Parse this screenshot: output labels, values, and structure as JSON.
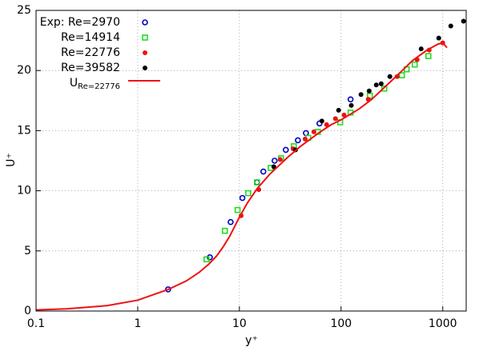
{
  "chart_data": {
    "type": "scatter",
    "x_label": "y⁺",
    "y_label": "U⁺",
    "log_x": true,
    "grid": true,
    "legend": "upper left",
    "xlim": [
      0.1,
      1700
    ],
    "xticks": [
      0.1,
      1,
      10,
      100,
      1000
    ],
    "ylim": [
      0,
      25
    ],
    "yticks": [
      0,
      5,
      10,
      15,
      20,
      25
    ],
    "series": [
      {
        "name": "Exp: Re=2970",
        "marker": "circle-open",
        "color": "#0000cc",
        "x": [
          1.99,
          5.12,
          8.2,
          10.7,
          14.9,
          17.2,
          22.2,
          28.6,
          37.6,
          45.1,
          61.3,
          124
        ],
        "values": [
          1.8,
          4.47,
          7.4,
          9.4,
          10.7,
          11.6,
          12.5,
          13.4,
          14.2,
          14.8,
          15.6,
          17.6
        ]
      },
      {
        "name": "Re=14914",
        "marker": "square-open",
        "color": "#22dd22",
        "x": [
          4.75,
          7.2,
          9.6,
          12.2,
          14.9,
          20.3,
          25.7,
          34.3,
          47.5,
          59.1,
          98,
          124,
          192,
          266,
          396,
          442,
          530,
          722
        ],
        "values": [
          4.3,
          6.67,
          8.4,
          9.8,
          10.7,
          11.9,
          12.7,
          13.7,
          14.4,
          14.9,
          15.7,
          16.5,
          17.9,
          18.5,
          19.6,
          20.1,
          20.5,
          21.2
        ]
      },
      {
        "name": "Re=22776",
        "marker": "dot",
        "color": "#ee1111",
        "x": [
          10.4,
          15.5,
          25.2,
          33.7,
          44.3,
          54,
          72,
          88,
          107,
          185,
          356,
          560,
          735,
          1000
        ],
        "values": [
          7.93,
          10.1,
          12.6,
          13.5,
          14.3,
          14.9,
          15.5,
          16.0,
          16.3,
          17.6,
          19.5,
          20.9,
          21.7,
          22.3
        ]
      },
      {
        "name": "Re=39582",
        "marker": "dot",
        "color": "#000000",
        "x": [
          21.8,
          35.6,
          64.7,
          94.6,
          126,
          157,
          189,
          222,
          248,
          302,
          613,
          914,
          1200,
          1600
        ],
        "values": [
          12.0,
          13.4,
          15.8,
          16.7,
          17.1,
          18.0,
          18.3,
          18.8,
          18.9,
          19.5,
          21.8,
          22.7,
          23.7,
          24.1
        ]
      },
      {
        "name": "U",
        "name_subscript": "Re=22776",
        "marker": "line",
        "color": "#ee1111",
        "x": [
          0.1,
          0.2,
          0.5,
          1,
          2,
          3,
          4,
          5,
          6,
          7,
          8,
          10,
          12,
          15,
          20,
          30,
          40,
          60,
          80,
          100,
          150,
          200,
          300,
          400,
          500,
          700,
          900,
          1000,
          1100
        ],
        "values": [
          0.09,
          0.18,
          0.45,
          0.9,
          1.8,
          2.5,
          3.2,
          3.9,
          4.6,
          5.4,
          6.2,
          7.8,
          9.0,
          10.2,
          11.4,
          12.8,
          13.7,
          14.8,
          15.5,
          15.9,
          16.8,
          17.6,
          19.0,
          20.0,
          20.8,
          21.7,
          22.2,
          22.3,
          21.9
        ]
      }
    ]
  }
}
